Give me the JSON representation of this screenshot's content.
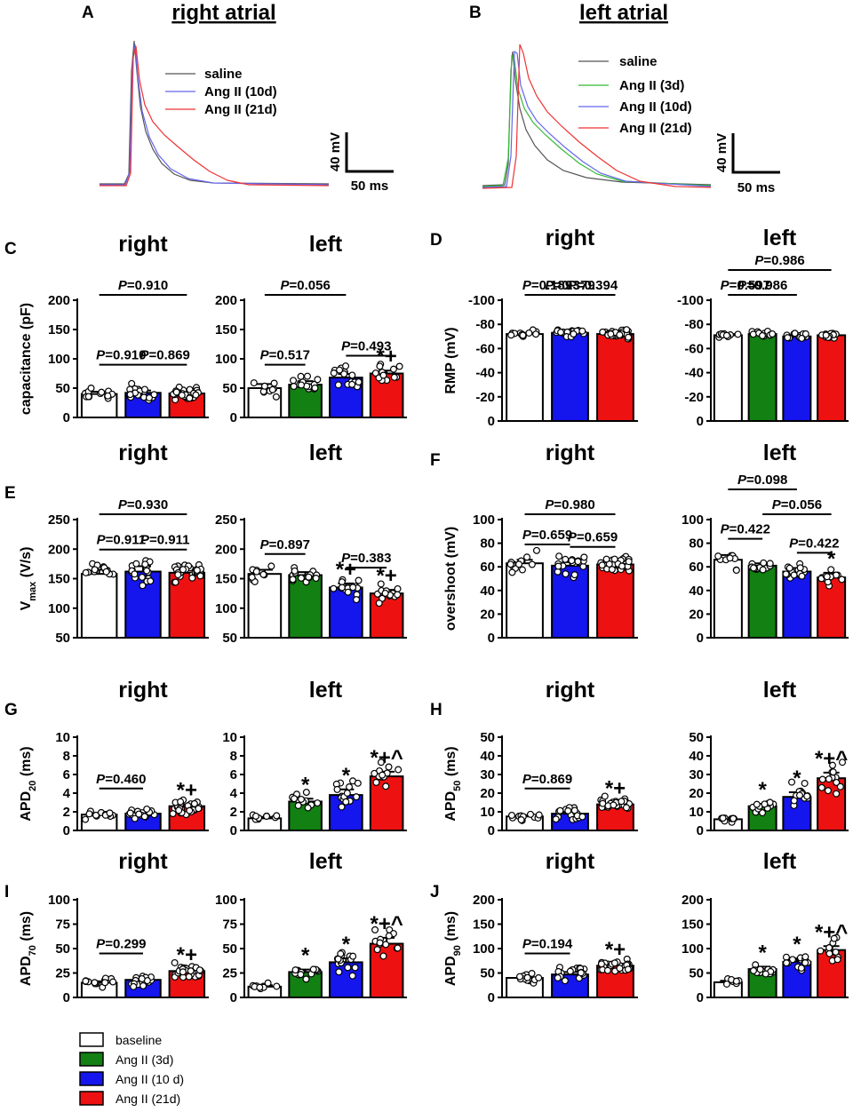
{
  "traceA": {
    "letter": "A",
    "title": "right atrial",
    "legend": [
      "saline",
      "Ang II (10d)",
      "Ang II (21d)"
    ],
    "colors": [
      "#555555",
      "#6666ee",
      "#ee3333"
    ],
    "scale_v": "40 mV",
    "scale_t": "50 ms"
  },
  "traceB": {
    "letter": "B",
    "title": "left atrial",
    "legend": [
      "saline",
      "Ang II (3d)",
      "Ang II (10d)",
      "Ang II (21d)"
    ],
    "colors": [
      "#555555",
      "#33bb33",
      "#6666ee",
      "#ee3333"
    ],
    "scale_v": "40 mV",
    "scale_t": "50 ms"
  },
  "legend": {
    "items": [
      "baseline",
      "Ang II (3d)",
      "Ang II (10 d)",
      "Ang II (21d)"
    ],
    "colors": [
      "#ffffff",
      "#128012",
      "#1515ee",
      "#ee1111"
    ]
  },
  "chart_data": [
    {
      "type": "bar",
      "panel": "C",
      "side": "right",
      "title": "right",
      "ylabel": "capacitance (pF)",
      "ylim": [
        0,
        200
      ],
      "ticks": [
        "0",
        "50",
        "100",
        "150",
        "200"
      ],
      "groups": [
        "baseline",
        "Ang II (10 d)",
        "Ang II (21d)"
      ],
      "values": [
        40,
        42,
        41
      ],
      "errors": [
        4,
        4,
        3
      ],
      "n": [
        13,
        18,
        28
      ],
      "sig": [
        "",
        "",
        ""
      ],
      "comparisons": [
        {
          "a": 0,
          "b": 1,
          "label": "P=0.910",
          "level": 0
        },
        {
          "a": 1,
          "b": 2,
          "label": "P=0.869",
          "level": 0
        },
        {
          "a": 0,
          "b": 2,
          "label": "P=0.910",
          "level": 1
        }
      ]
    },
    {
      "type": "bar",
      "panel": "C",
      "side": "left",
      "title": "left",
      "ylabel": "",
      "ylim": [
        0,
        200
      ],
      "ticks": [
        "0",
        "50",
        "100",
        "150",
        "200"
      ],
      "groups": [
        "baseline",
        "Ang II (3d)",
        "Ang II (10 d)",
        "Ang II (21d)"
      ],
      "values": [
        50,
        56,
        68,
        75
      ],
      "errors": [
        7,
        6,
        6,
        5
      ],
      "n": [
        9,
        14,
        15,
        13
      ],
      "sig": [
        "",
        "",
        "",
        "*+"
      ],
      "comparisons": [
        {
          "a": 0,
          "b": 1,
          "label": "P=0.517",
          "level": 0
        },
        {
          "a": 2,
          "b": 3,
          "label": "P=0.493",
          "level": 0
        },
        {
          "a": 0,
          "b": 2,
          "label": "P=0.056",
          "level": 1
        }
      ]
    },
    {
      "type": "bar",
      "panel": "D",
      "side": "right",
      "title": "right",
      "ylabel": "RMP (mV)",
      "ylim": [
        0,
        -100
      ],
      "ticks": [
        "0",
        "-20",
        "-40",
        "-60",
        "-80",
        "-100"
      ],
      "groups": [
        "baseline",
        "Ang II (10 d)",
        "Ang II (21d)"
      ],
      "values": [
        -72,
        -73,
        -72
      ],
      "errors": [
        1,
        1,
        1
      ],
      "n": [
        13,
        18,
        28
      ],
      "sig": [
        "",
        "",
        ""
      ],
      "comparisons": [
        {
          "a": 0,
          "b": 1,
          "label": "P=0.189",
          "level": 0
        },
        {
          "a": 1,
          "b": 2,
          "label": "P=0.394",
          "level": 0
        },
        {
          "a": 0,
          "b": 2,
          "label": "P=0.379",
          "level": 1
        }
      ]
    },
    {
      "type": "bar",
      "panel": "D",
      "side": "left",
      "title": "left",
      "ylabel": "",
      "ylim": [
        0,
        -100
      ],
      "ticks": [
        "0",
        "-20",
        "-40",
        "-60",
        "-80",
        "-100"
      ],
      "groups": [
        "baseline",
        "Ang II (3d)",
        "Ang II (10 d)",
        "Ang II (21d)"
      ],
      "values": [
        -71,
        -72,
        -70,
        -71
      ],
      "errors": [
        1,
        1,
        1,
        1
      ],
      "n": [
        9,
        14,
        15,
        13
      ],
      "sig": [
        "",
        "",
        "",
        ""
      ],
      "comparisons": [
        {
          "a": 0,
          "b": 1,
          "label": "P=0.597",
          "level": 0
        },
        {
          "a": 0,
          "b": 2,
          "label": "P=0.986",
          "level": 1
        },
        {
          "a": 0,
          "b": 3,
          "label": "P=0.986",
          "level": 2
        }
      ]
    },
    {
      "type": "bar",
      "panel": "E",
      "side": "right",
      "title": "right",
      "ylabel": "V_max (V/s)",
      "ylim": [
        50,
        250
      ],
      "ticks": [
        "50",
        "100",
        "150",
        "200",
        "250"
      ],
      "groups": [
        "baseline",
        "Ang II (10 d)",
        "Ang II (21d)"
      ],
      "values": [
        158,
        162,
        160
      ],
      "errors": [
        7,
        9,
        5
      ],
      "n": [
        13,
        18,
        28
      ],
      "sig": [
        "",
        "",
        ""
      ],
      "comparisons": [
        {
          "a": 0,
          "b": 1,
          "label": "P=0.911",
          "level": 0
        },
        {
          "a": 1,
          "b": 2,
          "label": "P=0.911",
          "level": 0
        },
        {
          "a": 0,
          "b": 2,
          "label": "P=0.930",
          "level": 1
        }
      ]
    },
    {
      "type": "bar",
      "panel": "E",
      "side": "left",
      "title": "left",
      "ylabel": "",
      "ylim": [
        50,
        250
      ],
      "ticks": [
        "50",
        "100",
        "150",
        "200",
        "250"
      ],
      "groups": [
        "baseline",
        "Ang II (3d)",
        "Ang II (10 d)",
        "Ang II (21d)"
      ],
      "values": [
        158,
        156,
        135,
        125
      ],
      "errors": [
        7,
        5,
        7,
        6
      ],
      "n": [
        9,
        14,
        15,
        13
      ],
      "sig": [
        "",
        "",
        "*+",
        "*+"
      ],
      "comparisons": [
        {
          "a": 0,
          "b": 1,
          "label": "P=0.897",
          "level": 0
        },
        {
          "a": 2,
          "b": 3,
          "label": "P=0.383",
          "level": 0
        }
      ]
    },
    {
      "type": "bar",
      "panel": "F",
      "side": "right",
      "title": "right",
      "ylabel": "overshoot (mV)",
      "ylim": [
        0,
        100
      ],
      "ticks": [
        "0",
        "20",
        "40",
        "60",
        "80",
        "100"
      ],
      "groups": [
        "baseline",
        "Ang II (10 d)",
        "Ang II (21d)"
      ],
      "values": [
        63,
        61,
        62
      ],
      "errors": [
        3,
        3,
        2
      ],
      "n": [
        13,
        18,
        28
      ],
      "sig": [
        "",
        "",
        ""
      ],
      "comparisons": [
        {
          "a": 0,
          "b": 1,
          "label": "P=0.659",
          "level": 0
        },
        {
          "a": 1,
          "b": 2,
          "label": "P=0.659",
          "level": 0
        },
        {
          "a": 0,
          "b": 2,
          "label": "P=0.980",
          "level": 1
        }
      ]
    },
    {
      "type": "bar",
      "panel": "F",
      "side": "left",
      "title": "left",
      "ylabel": "",
      "ylim": [
        0,
        100
      ],
      "ticks": [
        "0",
        "20",
        "40",
        "60",
        "80",
        "100"
      ],
      "groups": [
        "baseline",
        "Ang II (3d)",
        "Ang II (10 d)",
        "Ang II (21d)"
      ],
      "values": [
        66,
        61,
        56,
        51
      ],
      "errors": [
        4,
        2,
        3,
        4
      ],
      "n": [
        9,
        14,
        15,
        13
      ],
      "sig": [
        "",
        "",
        "",
        "*"
      ],
      "comparisons": [
        {
          "a": 0,
          "b": 1,
          "label": "P=0.422",
          "level": 0
        },
        {
          "a": 2,
          "b": 3,
          "label": "P=0.422",
          "level": 0
        },
        {
          "a": 1,
          "b": 3,
          "label": "P=0.056",
          "level": 1
        },
        {
          "a": 0,
          "b": 2,
          "label": "P=0.098",
          "level": 2
        }
      ]
    },
    {
      "type": "bar",
      "panel": "G",
      "side": "right",
      "title": "right",
      "ylabel": "APD_20 (ms)",
      "ylim": [
        0,
        10
      ],
      "ticks": [
        "0",
        "2",
        "4",
        "6",
        "8",
        "10"
      ],
      "groups": [
        "baseline",
        "Ang II (10 d)",
        "Ang II (21d)"
      ],
      "values": [
        1.7,
        1.8,
        2.6
      ],
      "errors": [
        0.15,
        0.2,
        0.2
      ],
      "n": [
        13,
        18,
        28
      ],
      "sig": [
        "",
        "",
        "*+"
      ],
      "comparisons": [
        {
          "a": 0,
          "b": 1,
          "label": "P=0.460",
          "level": 0
        }
      ]
    },
    {
      "type": "bar",
      "panel": "G",
      "side": "left",
      "title": "left",
      "ylabel": "",
      "ylim": [
        0,
        10
      ],
      "ticks": [
        "0",
        "2",
        "4",
        "6",
        "8",
        "10"
      ],
      "groups": [
        "baseline",
        "Ang II (3d)",
        "Ang II (10 d)",
        "Ang II (21d)"
      ],
      "values": [
        1.3,
        3.1,
        3.8,
        5.8
      ],
      "errors": [
        0.15,
        0.3,
        0.6,
        0.5
      ],
      "n": [
        9,
        14,
        15,
        13
      ],
      "sig": [
        "",
        "*",
        "*",
        "*+^"
      ],
      "comparisons": []
    },
    {
      "type": "bar",
      "panel": "H",
      "side": "right",
      "title": "right",
      "ylabel": "APD_50 (ms)",
      "ylim": [
        0,
        50
      ],
      "ticks": [
        "0",
        "10",
        "20",
        "30",
        "40",
        "50"
      ],
      "groups": [
        "baseline",
        "Ang II (10 d)",
        "Ang II (21d)"
      ],
      "values": [
        7.5,
        9,
        14
      ],
      "errors": [
        0.7,
        1,
        1
      ],
      "n": [
        13,
        18,
        28
      ],
      "sig": [
        "",
        "",
        "*+"
      ],
      "comparisons": [
        {
          "a": 0,
          "b": 1,
          "label": "P=0.869",
          "level": 0
        }
      ]
    },
    {
      "type": "bar",
      "panel": "H",
      "side": "left",
      "title": "left",
      "ylabel": "",
      "ylim": [
        0,
        50
      ],
      "ticks": [
        "0",
        "10",
        "20",
        "30",
        "40",
        "50"
      ],
      "groups": [
        "baseline",
        "Ang II (3d)",
        "Ang II (10 d)",
        "Ang II (21d)"
      ],
      "values": [
        6,
        13,
        18,
        28
      ],
      "errors": [
        0.7,
        1.2,
        2.5,
        3
      ],
      "n": [
        9,
        14,
        15,
        13
      ],
      "sig": [
        "",
        "*",
        "*",
        "*+^"
      ],
      "comparisons": []
    },
    {
      "type": "bar",
      "panel": "I",
      "side": "right",
      "title": "right",
      "ylabel": "APD_70 (ms)",
      "ylim": [
        0,
        100
      ],
      "ticks": [
        "0",
        "25",
        "50",
        "75",
        "100"
      ],
      "groups": [
        "baseline",
        "Ang II (10 d)",
        "Ang II (21d)"
      ],
      "values": [
        15,
        18,
        27
      ],
      "errors": [
        1.5,
        2,
        2
      ],
      "n": [
        13,
        18,
        28
      ],
      "sig": [
        "",
        "",
        "*+"
      ],
      "comparisons": [
        {
          "a": 0,
          "b": 1,
          "label": "P=0.299",
          "level": 0
        }
      ]
    },
    {
      "type": "bar",
      "panel": "I",
      "side": "left",
      "title": "left",
      "ylabel": "",
      "ylim": [
        0,
        100
      ],
      "ticks": [
        "0",
        "25",
        "50",
        "75",
        "100"
      ],
      "groups": [
        "baseline",
        "Ang II (3d)",
        "Ang II (10 d)",
        "Ang II (21d)"
      ],
      "values": [
        11,
        26,
        36,
        55
      ],
      "errors": [
        1.5,
        2.5,
        4,
        6
      ],
      "n": [
        9,
        14,
        15,
        13
      ],
      "sig": [
        "",
        "*",
        "*",
        "*+^"
      ],
      "comparisons": []
    },
    {
      "type": "bar",
      "panel": "J",
      "side": "right",
      "title": "right",
      "ylabel": "APD_90 (ms)",
      "ylim": [
        0,
        200
      ],
      "ticks": [
        "0",
        "50",
        "100",
        "150",
        "200"
      ],
      "groups": [
        "baseline",
        "Ang II (10 d)",
        "Ang II (21d)"
      ],
      "values": [
        40,
        47,
        65
      ],
      "errors": [
        4,
        5,
        4
      ],
      "n": [
        13,
        18,
        28
      ],
      "sig": [
        "",
        "",
        "*+"
      ],
      "comparisons": [
        {
          "a": 0,
          "b": 1,
          "label": "P=0.194",
          "level": 0
        }
      ]
    },
    {
      "type": "bar",
      "panel": "J",
      "side": "left",
      "title": "left",
      "ylabel": "",
      "ylim": [
        0,
        200
      ],
      "ticks": [
        "0",
        "50",
        "100",
        "150",
        "200"
      ],
      "groups": [
        "baseline",
        "Ang II (3d)",
        "Ang II (10 d)",
        "Ang II (21d)"
      ],
      "values": [
        31,
        58,
        73,
        97
      ],
      "errors": [
        3,
        5,
        7,
        8
      ],
      "n": [
        9,
        14,
        15,
        13
      ],
      "sig": [
        "",
        "*",
        "*",
        "*+^"
      ],
      "comparisons": []
    }
  ]
}
